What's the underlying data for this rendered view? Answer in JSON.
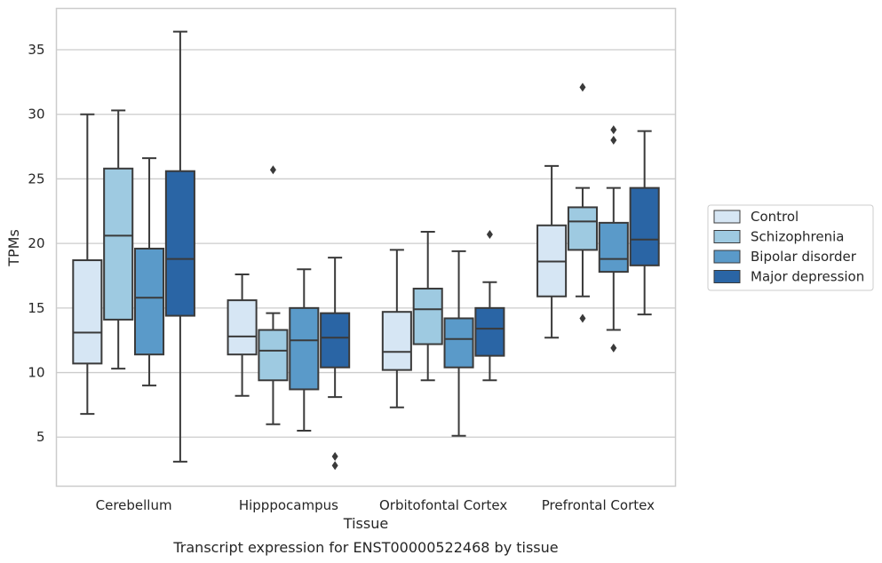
{
  "chart_data": {
    "type": "box",
    "title": "",
    "caption": "Transcript expression for ENST00000522468 by tissue",
    "xlabel": "Tissue",
    "ylabel": "TPMs",
    "ylim": [
      1.2,
      38.2
    ],
    "yticks": [
      5,
      10,
      15,
      20,
      25,
      30,
      35
    ],
    "grid": true,
    "legend_position": "right",
    "categories": [
      "Cerebellum",
      "Hipppocampus",
      "Orbitofontal Cortex",
      "Prefrontal Cortex"
    ],
    "series": [
      {
        "name": "Control",
        "color": "#d6e6f4",
        "boxes": [
          {
            "whislo": 6.8,
            "q1": 10.7,
            "med": 13.1,
            "q3": 18.7,
            "whishi": 30.0,
            "fliers": []
          },
          {
            "whislo": 8.2,
            "q1": 11.4,
            "med": 12.8,
            "q3": 15.6,
            "whishi": 17.6,
            "fliers": []
          },
          {
            "whislo": 7.3,
            "q1": 10.2,
            "med": 11.6,
            "q3": 14.7,
            "whishi": 19.5,
            "fliers": []
          },
          {
            "whislo": 12.7,
            "q1": 15.9,
            "med": 18.6,
            "q3": 21.4,
            "whishi": 26.0,
            "fliers": []
          }
        ]
      },
      {
        "name": "Schizophrenia",
        "color": "#9ecae1",
        "boxes": [
          {
            "whislo": 10.3,
            "q1": 14.1,
            "med": 20.6,
            "q3": 25.8,
            "whishi": 30.3,
            "fliers": []
          },
          {
            "whislo": 6.0,
            "q1": 9.4,
            "med": 11.7,
            "q3": 13.3,
            "whishi": 14.6,
            "fliers": [
              25.7
            ]
          },
          {
            "whislo": 9.4,
            "q1": 12.2,
            "med": 14.9,
            "q3": 16.5,
            "whishi": 20.9,
            "fliers": []
          },
          {
            "whislo": 15.9,
            "q1": 19.5,
            "med": 21.7,
            "q3": 22.8,
            "whishi": 24.3,
            "fliers": [
              32.1,
              14.2
            ]
          }
        ]
      },
      {
        "name": "Bipolar disorder",
        "color": "#5a9ac9",
        "boxes": [
          {
            "whislo": 9.0,
            "q1": 11.4,
            "med": 15.8,
            "q3": 19.6,
            "whishi": 26.6,
            "fliers": []
          },
          {
            "whislo": 5.5,
            "q1": 8.7,
            "med": 12.5,
            "q3": 15.0,
            "whishi": 18.0,
            "fliers": []
          },
          {
            "whislo": 5.1,
            "q1": 10.4,
            "med": 12.6,
            "q3": 14.2,
            "whishi": 19.4,
            "fliers": []
          },
          {
            "whislo": 13.3,
            "q1": 17.8,
            "med": 18.8,
            "q3": 21.6,
            "whishi": 24.3,
            "fliers": [
              28.8,
              28.0,
              11.9
            ]
          }
        ]
      },
      {
        "name": "Major depression",
        "color": "#2a65a5",
        "boxes": [
          {
            "whislo": 3.1,
            "q1": 14.4,
            "med": 18.8,
            "q3": 25.6,
            "whishi": 36.4,
            "fliers": []
          },
          {
            "whislo": 8.1,
            "q1": 10.4,
            "med": 12.7,
            "q3": 14.6,
            "whishi": 18.9,
            "fliers": [
              3.5,
              2.8
            ]
          },
          {
            "whislo": 9.4,
            "q1": 11.3,
            "med": 13.4,
            "q3": 15.0,
            "whishi": 17.0,
            "fliers": [
              20.7
            ]
          },
          {
            "whislo": 14.5,
            "q1": 18.3,
            "med": 20.3,
            "q3": 24.3,
            "whishi": 28.7,
            "fliers": []
          }
        ]
      }
    ]
  }
}
